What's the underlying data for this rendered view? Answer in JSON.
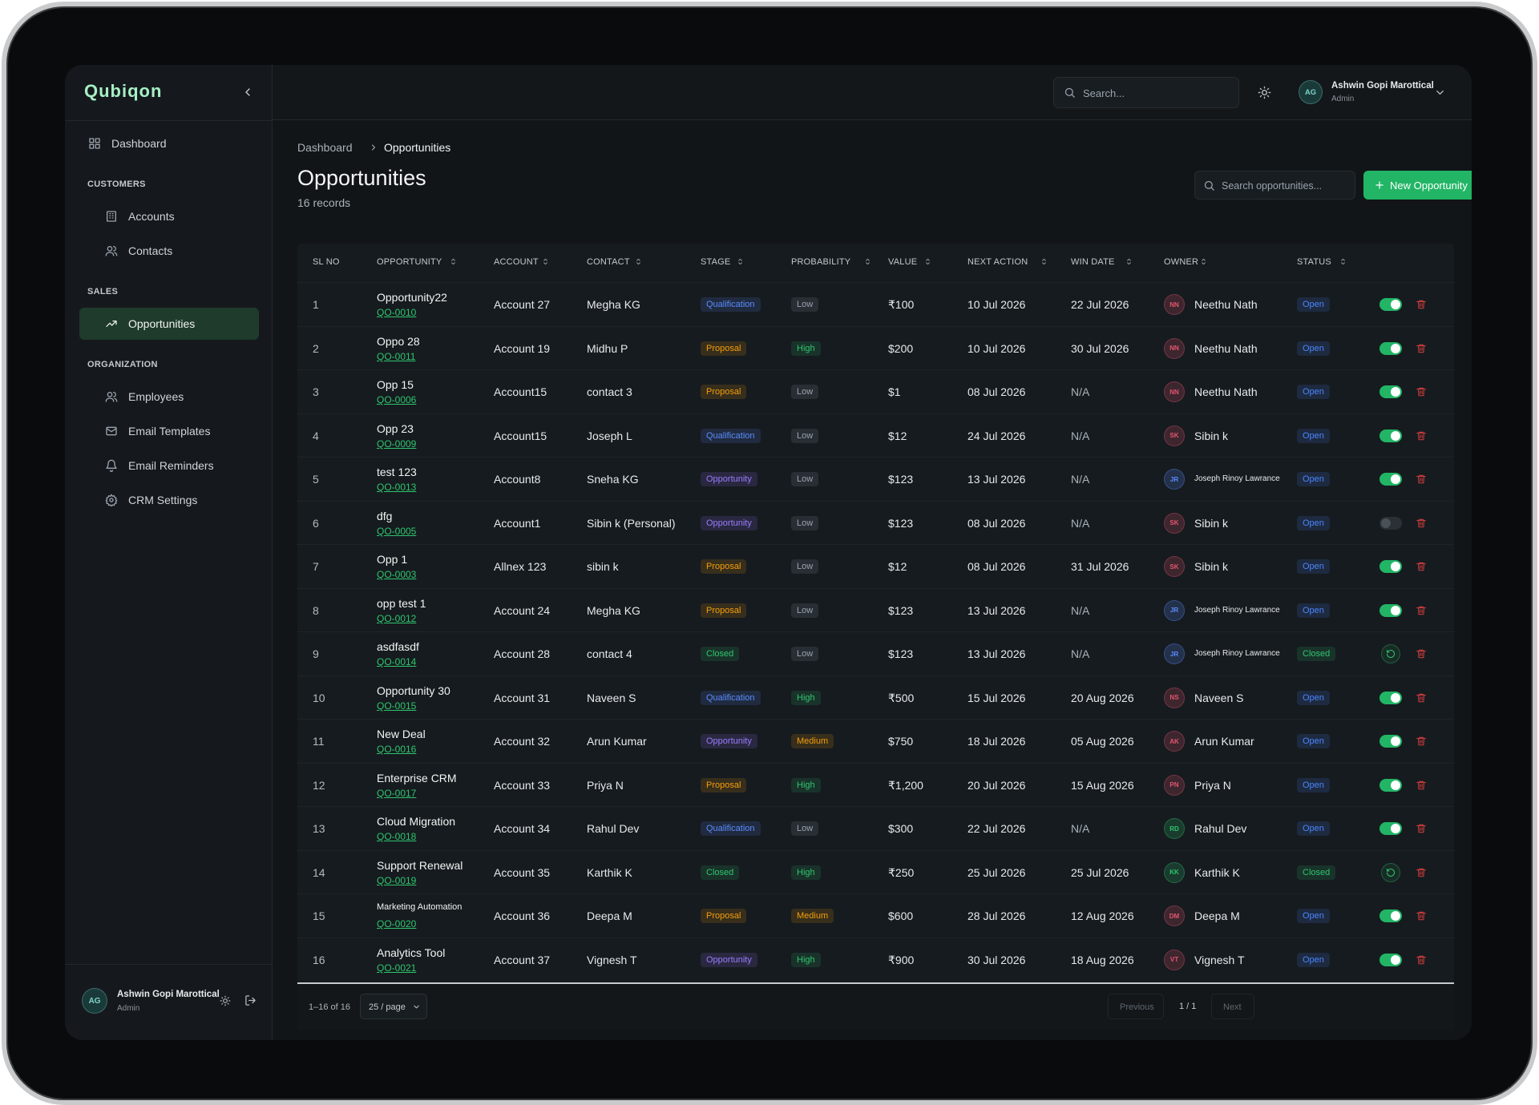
{
  "brand": "Qubiqon",
  "sidebar": {
    "nav": [
      {
        "label": "Dashboard"
      }
    ],
    "sections": [
      {
        "title": "CUSTOMERS",
        "items": [
          {
            "label": "Accounts"
          },
          {
            "label": "Contacts"
          }
        ]
      },
      {
        "title": "SALES",
        "items": [
          {
            "label": "Opportunities",
            "active": true
          }
        ]
      },
      {
        "title": "ORGANIZATION",
        "items": [
          {
            "label": "Employees"
          },
          {
            "label": "Email Templates"
          },
          {
            "label": "Email Reminders"
          },
          {
            "label": "CRM Settings"
          }
        ]
      }
    ],
    "user": {
      "initials": "AG",
      "name": "Ashwin Gopi Marottical",
      "role": "Admin"
    }
  },
  "header": {
    "search_placeholder": "Search...",
    "user": {
      "initials": "AG",
      "name": "Ashwin Gopi Marottical",
      "role": "Admin"
    }
  },
  "breadcrumb": [
    "Dashboard",
    "Opportunities"
  ],
  "page_title": "Opportunities",
  "record_count": "16 records",
  "search_placeholder": "Search opportunities...",
  "new_button": "New Opportunity",
  "columns": [
    {
      "label": "SL NO",
      "sortable": false
    },
    {
      "label": "OPPORTUNITY",
      "sortable": true
    },
    {
      "label": "ACCOUNT",
      "sortable": true
    },
    {
      "label": "CONTACT",
      "sortable": true
    },
    {
      "label": "STAGE",
      "sortable": true
    },
    {
      "label": "PROBABILITY",
      "sortable": true
    },
    {
      "label": "VALUE",
      "sortable": true
    },
    {
      "label": "NEXT ACTION",
      "sortable": true
    },
    {
      "label": "WIN DATE",
      "sortable": true
    },
    {
      "label": "OWNER",
      "sortable": true
    },
    {
      "label": "STATUS",
      "sortable": true
    }
  ],
  "stage_colors": {
    "Qualification": "#5b8cff",
    "Proposal": "#f59e0b",
    "Opportunity": "#9b7bff",
    "Closed": "#2fc56e"
  },
  "probability_colors": {
    "Low": "#9aa3ad",
    "High": "#2fc56e",
    "Medium": "#f59e0b"
  },
  "status_colors": {
    "Open": "#4c86ff",
    "Closed": "#2fc56e"
  },
  "rows": [
    {
      "sl": 1,
      "name": "Opportunity22",
      "code": "QO-0010",
      "account": "Account 27",
      "contact": "Megha KG",
      "stage": "Qualification",
      "probability": "Low",
      "value": "₹100",
      "next_action": "10 Jul 2026",
      "win_date": "22 Jul 2026",
      "owner_initials": "NN",
      "owner": "Neethu Nath",
      "owner_color": "#e0566f",
      "status": "Open",
      "action": "toggle-on"
    },
    {
      "sl": 2,
      "name": "Oppo 28",
      "code": "QO-0011",
      "account": "Account 19",
      "contact": "Midhu P",
      "stage": "Proposal",
      "probability": "High",
      "value": "$200",
      "next_action": "10 Jul 2026",
      "win_date": "30 Jul 2026",
      "owner_initials": "NN",
      "owner": "Neethu Nath",
      "owner_color": "#e0566f",
      "status": "Open",
      "action": "toggle-on"
    },
    {
      "sl": 3,
      "name": "Opp 15",
      "code": "QO-0006",
      "account": "Account15",
      "contact": "contact 3",
      "stage": "Proposal",
      "probability": "Low",
      "value": "$1",
      "next_action": "08 Jul 2026",
      "win_date": "N/A",
      "owner_initials": "NN",
      "owner": "Neethu Nath",
      "owner_color": "#e0566f",
      "status": "Open",
      "action": "toggle-on"
    },
    {
      "sl": 4,
      "name": "Opp 23",
      "code": "QO-0009",
      "account": "Account15",
      "contact": "Joseph L",
      "stage": "Qualification",
      "probability": "Low",
      "value": "$12",
      "next_action": "24 Jul 2026",
      "win_date": "N/A",
      "owner_initials": "SK",
      "owner": "Sibin k",
      "owner_color": "#e0566f",
      "status": "Open",
      "action": "toggle-on"
    },
    {
      "sl": 5,
      "name": "test 123",
      "code": "QO-0013",
      "account": "Account8",
      "contact": "Sneha KG",
      "stage": "Opportunity",
      "probability": "Low",
      "value": "$123",
      "next_action": "13 Jul 2026",
      "win_date": "N/A",
      "owner_initials": "JR",
      "owner": "Joseph Rinoy Lawrance",
      "owner_color": "#5b8cff",
      "status": "Open",
      "action": "toggle-on"
    },
    {
      "sl": 6,
      "name": "dfg",
      "code": "QO-0005",
      "account": "Account1",
      "contact": "Sibin k (Personal)",
      "stage": "Opportunity",
      "probability": "Low",
      "value": "$123",
      "next_action": "08 Jul 2026",
      "win_date": "N/A",
      "owner_initials": "SK",
      "owner": "Sibin k",
      "owner_color": "#e0566f",
      "status": "Open",
      "action": "toggle-off"
    },
    {
      "sl": 7,
      "name": "Opp 1",
      "code": "QO-0003",
      "account": "Allnex 123",
      "contact": "sibin k",
      "stage": "Proposal",
      "probability": "Low",
      "value": "$12",
      "next_action": "08 Jul 2026",
      "win_date": "31 Jul 2026",
      "owner_initials": "SK",
      "owner": "Sibin k",
      "owner_color": "#e0566f",
      "status": "Open",
      "action": "toggle-on"
    },
    {
      "sl": 8,
      "name": "opp test 1",
      "code": "QO-0012",
      "account": "Account 24",
      "contact": "Megha KG",
      "stage": "Proposal",
      "probability": "Low",
      "value": "$123",
      "next_action": "13 Jul 2026",
      "win_date": "N/A",
      "owner_initials": "JR",
      "owner": "Joseph Rinoy Lawrance",
      "owner_color": "#5b8cff",
      "status": "Open",
      "action": "toggle-on"
    },
    {
      "sl": 9,
      "name": "asdfasdf",
      "code": "QO-0014",
      "account": "Account 28",
      "contact": "contact 4",
      "stage": "Closed",
      "probability": "Low",
      "value": "$123",
      "next_action": "13 Jul 2026",
      "win_date": "N/A",
      "owner_initials": "JR",
      "owner": "Joseph Rinoy Lawrance",
      "owner_color": "#5b8cff",
      "status": "Closed",
      "action": "restore"
    },
    {
      "sl": 10,
      "name": "Opportunity 30",
      "code": "QO-0015",
      "account": "Account 31",
      "contact": "Naveen S",
      "stage": "Qualification",
      "probability": "High",
      "value": "₹500",
      "next_action": "15 Jul 2026",
      "win_date": "20 Aug 2026",
      "owner_initials": "NS",
      "owner": "Naveen S",
      "owner_color": "#e0566f",
      "status": "Open",
      "action": "toggle-on"
    },
    {
      "sl": 11,
      "name": "New Deal",
      "code": "QO-0016",
      "account": "Account 32",
      "contact": "Arun Kumar",
      "stage": "Opportunity",
      "probability": "Medium",
      "value": "$750",
      "next_action": "18 Jul 2026",
      "win_date": "05 Aug 2026",
      "owner_initials": "AK",
      "owner": "Arun Kumar",
      "owner_color": "#e0566f",
      "status": "Open",
      "action": "toggle-on"
    },
    {
      "sl": 12,
      "name": "Enterprise CRM",
      "code": "QO-0017",
      "account": "Account 33",
      "contact": "Priya N",
      "stage": "Proposal",
      "probability": "High",
      "value": "₹1,200",
      "next_action": "20 Jul 2026",
      "win_date": "15 Aug 2026",
      "owner_initials": "PN",
      "owner": "Priya N",
      "owner_color": "#e0566f",
      "status": "Open",
      "action": "toggle-on"
    },
    {
      "sl": 13,
      "name": "Cloud Migration",
      "code": "QO-0018",
      "account": "Account 34",
      "contact": "Rahul Dev",
      "stage": "Qualification",
      "probability": "Low",
      "value": "$300",
      "next_action": "22 Jul 2026",
      "win_date": "N/A",
      "owner_initials": "RD",
      "owner": "Rahul Dev",
      "owner_color": "#2fc56e",
      "status": "Open",
      "action": "toggle-on"
    },
    {
      "sl": 14,
      "name": "Support Renewal",
      "code": "QO-0019",
      "account": "Account 35",
      "contact": "Karthik K",
      "stage": "Closed",
      "probability": "High",
      "value": "₹250",
      "next_action": "25 Jul 2026",
      "win_date": "25 Jul 2026",
      "owner_initials": "KK",
      "owner": "Karthik K",
      "owner_color": "#2fc56e",
      "status": "Closed",
      "action": "restore"
    },
    {
      "sl": 15,
      "name": "Marketing Automation",
      "code": "QO-0020",
      "account": "Account 36",
      "contact": "Deepa M",
      "stage": "Proposal",
      "probability": "Medium",
      "value": "$600",
      "next_action": "28 Jul 2026",
      "win_date": "12 Aug 2026",
      "owner_initials": "DM",
      "owner": "Deepa M",
      "owner_color": "#e0566f",
      "status": "Open",
      "action": "toggle-on"
    },
    {
      "sl": 16,
      "name": "Analytics Tool",
      "code": "QO-0021",
      "account": "Account 37",
      "contact": "Vignesh T",
      "stage": "Opportunity",
      "probability": "High",
      "value": "₹900",
      "next_action": "30 Jul 2026",
      "win_date": "18 Aug 2026",
      "owner_initials": "VT",
      "owner": "Vignesh T",
      "owner_color": "#e0566f",
      "status": "Open",
      "action": "toggle-on"
    }
  ],
  "pagination": {
    "range": "1–16 of 16",
    "page_size": "25 / page",
    "previous": "Previous",
    "page": "1 / 1",
    "next": "Next"
  }
}
